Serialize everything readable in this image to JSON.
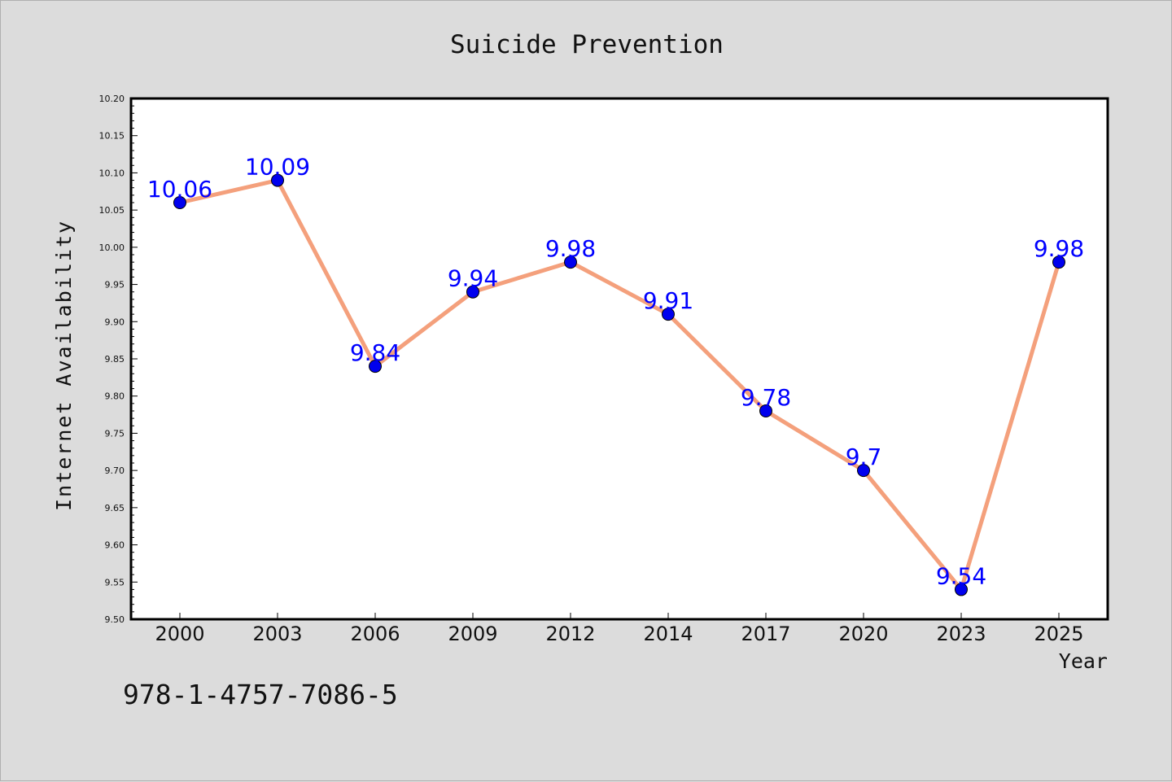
{
  "chart_data": {
    "type": "line",
    "title": "Suicide Prevention",
    "xlabel": "Year",
    "ylabel": "Internet Availability",
    "categories": [
      "2000",
      "2003",
      "2006",
      "2009",
      "2012",
      "2014",
      "2017",
      "2020",
      "2023",
      "2025"
    ],
    "series": [
      {
        "values": [
          10.06,
          10.09,
          9.84,
          9.94,
          9.98,
          9.91,
          9.78,
          9.7,
          9.54,
          9.98
        ],
        "labels": [
          "10.06",
          "10.09",
          "9.84",
          "9.94",
          "9.98",
          "9.91",
          "9.78",
          "9.7",
          "9.54",
          "9.98"
        ]
      }
    ],
    "ylim": [
      9.5,
      10.2
    ],
    "yticks": [
      "9.50",
      "9.55",
      "9.60",
      "9.65",
      "9.70",
      "9.75",
      "9.80",
      "9.85",
      "9.90",
      "9.95",
      "10.00",
      "10.05",
      "10.10",
      "10.15",
      "10.20"
    ],
    "grid": false,
    "legend": "none",
    "colors": {
      "line": "#f4a07c",
      "marker": "#0000ee",
      "data_label": "#0000ff",
      "background": "#dcdcdc",
      "plot_background": "#ffffff"
    }
  },
  "footer_text": "978-1-4757-7086-5"
}
